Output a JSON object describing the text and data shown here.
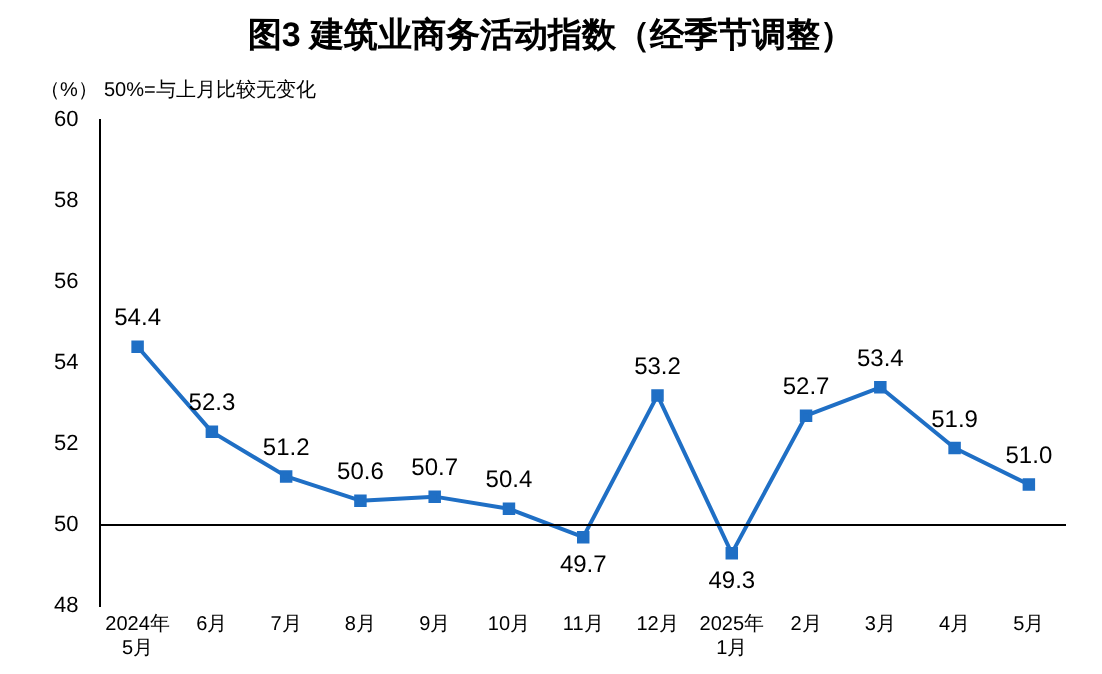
{
  "chart_data": {
    "type": "line",
    "title": "图3  建筑业商务活动指数（经季节调整）",
    "ylabel": "（%）",
    "annotations": [
      "50%=与上月比较无变化"
    ],
    "categories": [
      "2024年\n5月",
      "6月",
      "7月",
      "8月",
      "9月",
      "10月",
      "11月",
      "12月",
      "2025年\n1月",
      "2月",
      "3月",
      "4月",
      "5月"
    ],
    "series": [
      {
        "color": "#1f6fc5",
        "values": [
          54.4,
          52.3,
          51.2,
          50.6,
          50.7,
          50.4,
          49.7,
          53.2,
          49.3,
          52.7,
          53.4,
          51.9,
          51.0
        ],
        "value_labels": [
          "54.4",
          "52.3",
          "51.2",
          "50.6",
          "50.7",
          "50.4",
          "49.7",
          "53.2",
          "49.3",
          "52.7",
          "53.4",
          "51.9",
          "51.0"
        ]
      }
    ],
    "ylim": [
      48,
      60
    ],
    "yticks": [
      48,
      50,
      52,
      54,
      56,
      58,
      60
    ],
    "ref_lines": [
      {
        "axis": "y",
        "value": 50,
        "color": "#000000"
      }
    ],
    "grid": false,
    "legend": false,
    "marker": "square",
    "line_style": "solid"
  }
}
